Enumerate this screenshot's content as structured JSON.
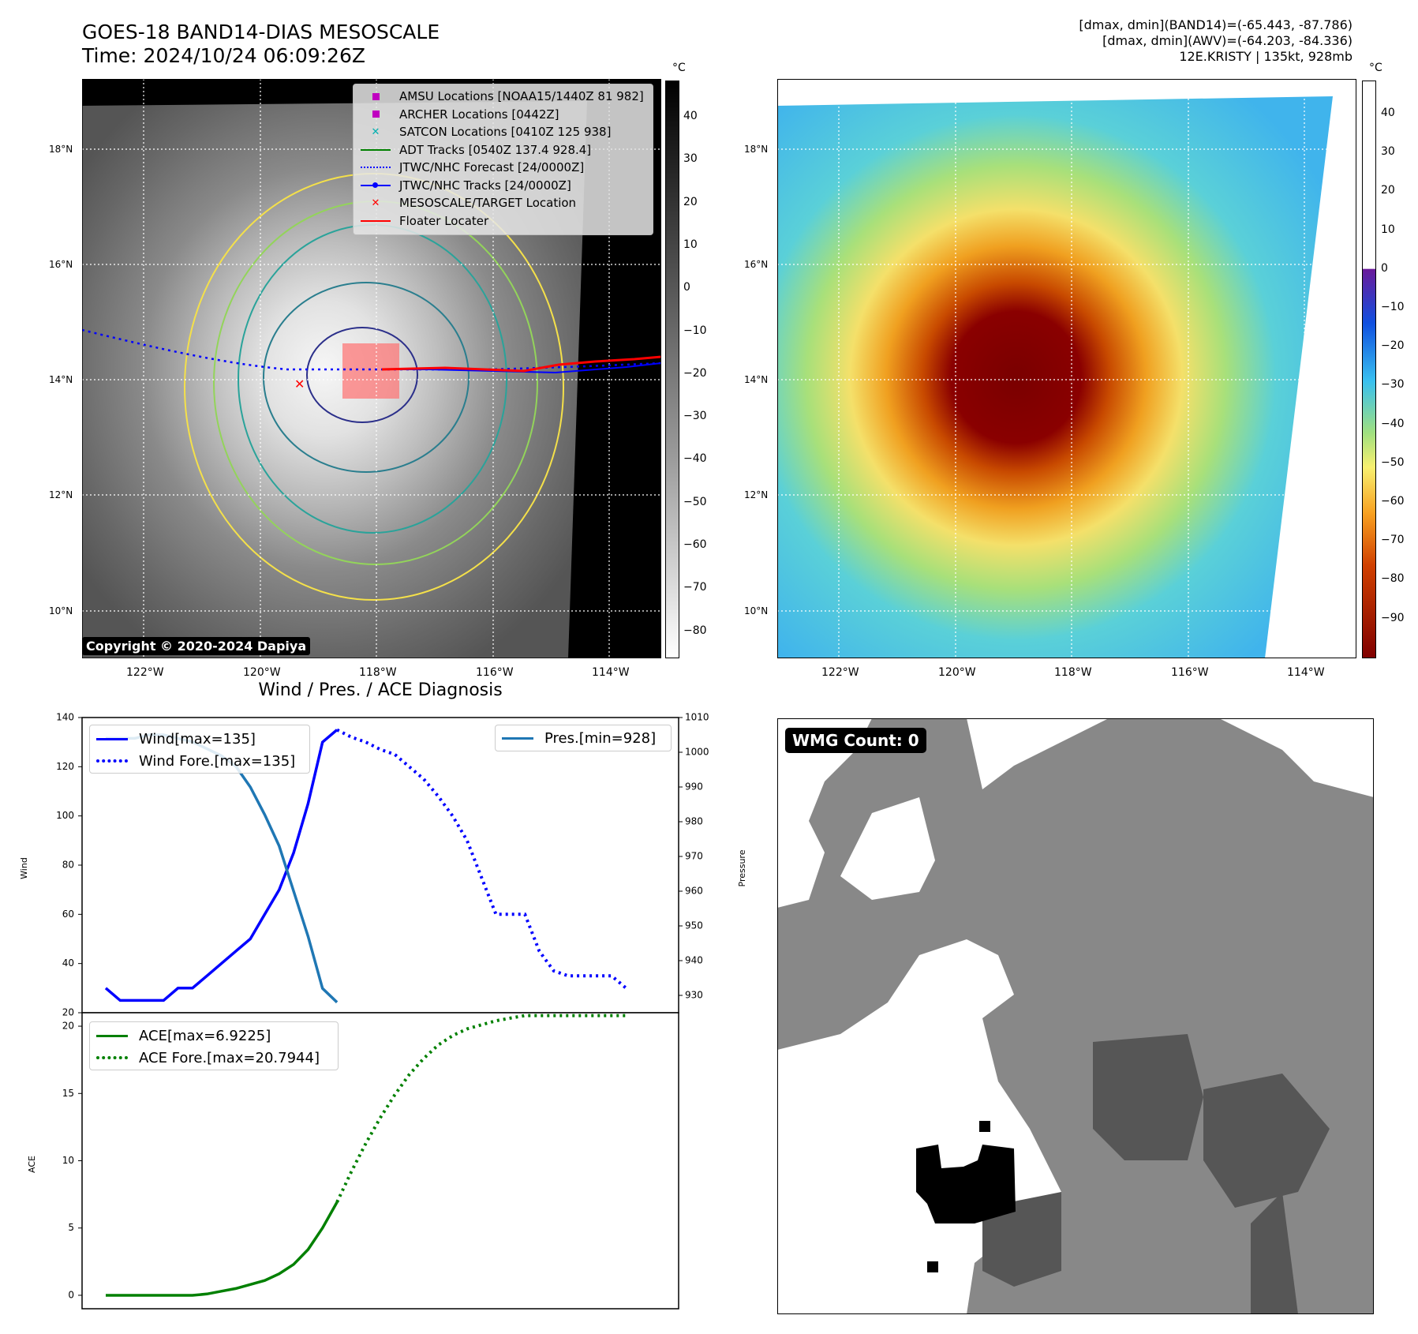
{
  "header": {
    "title_line1": "GOES-18 BAND14-DIAS MESOSCALE",
    "title_line2": "Time: 2024/10/24 06:09:26Z",
    "info_line1": "[dmax, dmin](BAND14)=(-65.443, -87.786)",
    "info_line2": "[dmax, dmin](AWV)=(-64.203, -84.336)",
    "info_line3": "12E.KRISTY | 135kt, 928mb"
  },
  "map_axes": {
    "lat_labels": [
      "18°N",
      "16°N",
      "14°N",
      "12°N",
      "10°N"
    ],
    "lon_labels": [
      "122°W",
      "120°W",
      "118°W",
      "116°W",
      "114°W"
    ]
  },
  "colorbar_ir": {
    "unit": "°C",
    "ticks": [
      "40",
      "30",
      "20",
      "10",
      "0",
      "−10",
      "−20",
      "−30",
      "−40",
      "−50",
      "−60",
      "−70",
      "−80"
    ]
  },
  "colorbar_color": {
    "unit": "°C",
    "ticks": [
      "40",
      "30",
      "20",
      "10",
      "0",
      "−10",
      "−20",
      "−30",
      "−40",
      "−50",
      "−60",
      "−70",
      "−80",
      "−90"
    ]
  },
  "legend": {
    "items": [
      {
        "label": "AMSU Locations [NOAA15/1440Z 81 982]",
        "symbol": "square",
        "color": "#c000c0"
      },
      {
        "label": "ARCHER Locations [0442Z]",
        "symbol": "square",
        "color": "#c000c0"
      },
      {
        "label": "SATCON Locations [0410Z 125 938]",
        "symbol": "x",
        "color": "#00b0b0"
      },
      {
        "label": "ADT Tracks [0540Z 137.4 928.4]",
        "symbol": "line",
        "color": "#008000"
      },
      {
        "label": "JTWC/NHC Forecast [24/0000Z]",
        "symbol": "dotted",
        "color": "#0000ff"
      },
      {
        "label": "JTWC/NHC Tracks [24/0000Z]",
        "symbol": "line-dot",
        "color": "#0000ff"
      },
      {
        "label": "MESOSCALE/TARGET Location",
        "symbol": "x",
        "color": "#ff0000"
      },
      {
        "label": "Floater Locater",
        "symbol": "line",
        "color": "#ff0000"
      }
    ]
  },
  "copyright": "Copyright © 2020-2024 Dapiya",
  "wmg_label": "WMG Count: 0",
  "diagnosis_title": "Wind / Pres. / ACE Diagnosis",
  "chart_data": [
    {
      "type": "line",
      "title": "Wind / Pres. / ACE Diagnosis",
      "ylabel": "Wind",
      "y2label": "Pressure",
      "ylim": [
        20,
        140
      ],
      "y2lim": [
        925,
        1010
      ],
      "yticks": [
        "140",
        "120",
        "100",
        "80",
        "60",
        "40",
        "20"
      ],
      "y2ticks": [
        "1010",
        "1000",
        "990",
        "980",
        "970",
        "960",
        "950",
        "940",
        "930"
      ],
      "x_index_range": [
        0,
        38
      ],
      "series": [
        {
          "name": "Wind[max=135]",
          "axis": "left",
          "style": "solid",
          "color": "#0000ff",
          "x": [
            0,
            1,
            2,
            3,
            4,
            5,
            6,
            7,
            8,
            9,
            10,
            11,
            12,
            13,
            14,
            15,
            16,
            17
          ],
          "y": [
            30,
            25,
            25,
            25,
            25,
            30,
            30,
            35,
            40,
            45,
            50,
            60,
            70,
            85,
            105,
            130,
            135,
            null
          ]
        },
        {
          "name": "Wind Fore.[max=135]",
          "axis": "left",
          "style": "dotted",
          "color": "#0000ff",
          "x": [
            16,
            17,
            18,
            19,
            20,
            21,
            22,
            23,
            24,
            25,
            26,
            27,
            28,
            29,
            30,
            31,
            32,
            33,
            34,
            35,
            36
          ],
          "y": [
            135,
            132,
            130,
            127,
            125,
            120,
            115,
            108,
            100,
            90,
            75,
            60,
            60,
            60,
            45,
            37,
            35,
            35,
            35,
            35,
            30
          ]
        },
        {
          "name": "Pres.[min=928]",
          "axis": "right",
          "style": "solid",
          "color": "#1f77b4",
          "x": [
            0,
            1,
            2,
            3,
            4,
            5,
            6,
            7,
            8,
            9,
            10,
            11,
            12,
            13,
            14,
            15,
            16
          ],
          "y": [
            1004,
            1004,
            1004,
            1005,
            1005,
            1004,
            1003,
            1001,
            999,
            996,
            990,
            982,
            973,
            960,
            947,
            932,
            928
          ]
        }
      ]
    },
    {
      "type": "line",
      "ylabel": "ACE",
      "ylim": [
        -1,
        21
      ],
      "yticks": [
        "20",
        "15",
        "10",
        "5",
        "0"
      ],
      "x_index_range": [
        0,
        38
      ],
      "series": [
        {
          "name": "ACE[max=6.9225]",
          "style": "solid",
          "color": "#008000",
          "x": [
            0,
            1,
            2,
            3,
            4,
            5,
            6,
            7,
            8,
            9,
            10,
            11,
            12,
            13,
            14,
            15,
            16
          ],
          "y": [
            0,
            0,
            0,
            0,
            0,
            0,
            0,
            0.1,
            0.3,
            0.5,
            0.8,
            1.1,
            1.6,
            2.3,
            3.4,
            5.0,
            6.92
          ]
        },
        {
          "name": "ACE Fore.[max=20.7944]",
          "style": "dotted",
          "color": "#008000",
          "x": [
            16,
            17,
            18,
            19,
            20,
            21,
            22,
            23,
            24,
            25,
            26,
            27,
            28,
            29,
            30,
            31,
            32,
            33,
            34,
            35,
            36
          ],
          "y": [
            6.92,
            9.2,
            11.3,
            13.2,
            14.9,
            16.4,
            17.6,
            18.6,
            19.3,
            19.8,
            20.1,
            20.4,
            20.6,
            20.79,
            20.79,
            20.79,
            20.79,
            20.79,
            20.79,
            20.79,
            20.79
          ]
        }
      ]
    }
  ]
}
